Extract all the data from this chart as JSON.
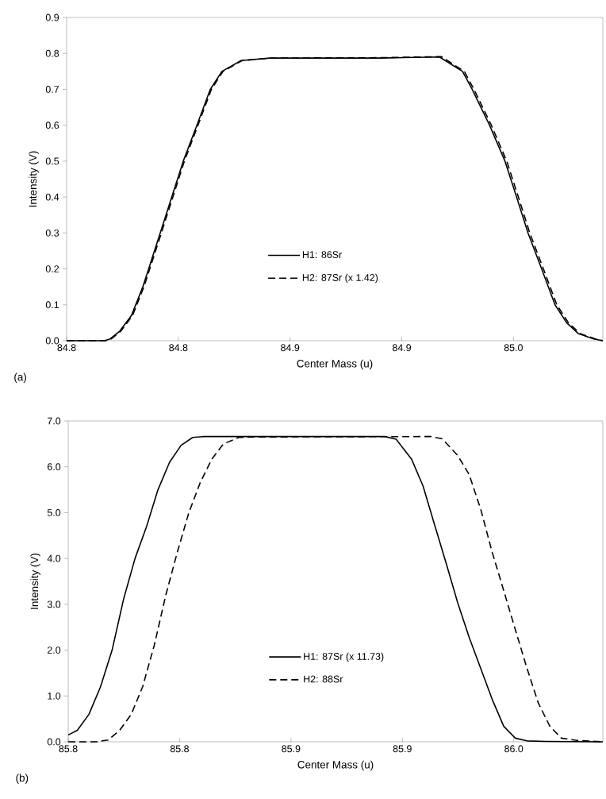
{
  "chart_data": [
    {
      "type": "line",
      "xlabel": "Center Mass (u)",
      "ylabel": "Intensity (V)",
      "annotations": [
        "(a)"
      ],
      "legend": "bottom",
      "xlim": [
        84.76,
        85.0
      ],
      "ylim": [
        0,
        0.9
      ],
      "xticks": [
        {
          "value": 84.76,
          "label": "84.8"
        },
        {
          "value": 84.81,
          "label": "84.8"
        },
        {
          "value": 84.86,
          "label": "84.9"
        },
        {
          "value": 84.91,
          "label": "84.9"
        },
        {
          "value": 84.96,
          "label": "85.0"
        }
      ],
      "yticks": [
        {
          "value": 0,
          "label": "0.0"
        },
        {
          "value": 0.1,
          "label": "0.1"
        },
        {
          "value": 0.2,
          "label": "0.2"
        },
        {
          "value": 0.3,
          "label": "0.3"
        },
        {
          "value": 0.4,
          "label": "0.4"
        },
        {
          "value": 0.5,
          "label": "0.5"
        },
        {
          "value": 0.6,
          "label": "0.6"
        },
        {
          "value": 0.7,
          "label": "0.7"
        },
        {
          "value": 0.8,
          "label": "0.8"
        },
        {
          "value": 0.9,
          "label": "0.9"
        }
      ],
      "series": [
        {
          "name": "H1: 86Sr",
          "color": "#000000",
          "line_style": "solid",
          "x": [
            84.76,
            84.7769,
            84.7795,
            84.7838,
            84.789,
            84.7941,
            84.8019,
            84.8122,
            84.8183,
            84.8243,
            84.8295,
            84.8381,
            84.851,
            84.9,
            84.9269,
            84.9372,
            84.9415,
            84.9493,
            84.9562,
            84.9614,
            84.9665,
            84.9726,
            84.9786,
            84.9838,
            84.989,
            84.9959,
            85.0
          ],
          "values": [
            0,
            0,
            0.005,
            0.027,
            0.07,
            0.15,
            0.3,
            0.5,
            0.6,
            0.7,
            0.75,
            0.78,
            0.787,
            0.787,
            0.79,
            0.75,
            0.7,
            0.6,
            0.5,
            0.4,
            0.3,
            0.2,
            0.1,
            0.05,
            0.02,
            0.005,
            0
          ]
        },
        {
          "name": "H2: 87Sr (x 1.42)",
          "color": "#000000",
          "line_style": "dashed",
          "x": [
            84.76,
            84.7774,
            84.78,
            84.7843,
            84.7895,
            84.7946,
            84.8024,
            84.8127,
            84.8188,
            84.8248,
            84.83,
            84.8386,
            84.8515,
            84.9,
            84.9277,
            84.938,
            84.9423,
            84.9501,
            84.957,
            84.9622,
            84.9673,
            84.9734,
            84.9794,
            84.9846,
            84.9898,
            84.9967,
            85.0
          ],
          "values": [
            0,
            0,
            0.005,
            0.027,
            0.07,
            0.15,
            0.3,
            0.5,
            0.6,
            0.7,
            0.75,
            0.78,
            0.787,
            0.788,
            0.791,
            0.75,
            0.7,
            0.6,
            0.5,
            0.4,
            0.3,
            0.2,
            0.1,
            0.05,
            0.02,
            0.005,
            0
          ]
        }
      ]
    },
    {
      "type": "line",
      "xlabel": "Center Mass (u)",
      "ylabel": "Intensity (V)",
      "annotations": [
        "(b)"
      ],
      "legend": "bottom",
      "xlim": [
        85.79,
        86.03
      ],
      "ylim": [
        0,
        7
      ],
      "xticks": [
        {
          "value": 85.79,
          "label": "85.8"
        },
        {
          "value": 85.84,
          "label": "85.8"
        },
        {
          "value": 85.89,
          "label": "85.9"
        },
        {
          "value": 85.94,
          "label": "85.9"
        },
        {
          "value": 85.99,
          "label": "86.0"
        }
      ],
      "yticks": [
        {
          "value": 0,
          "label": "0.0"
        },
        {
          "value": 1,
          "label": "1.0"
        },
        {
          "value": 2,
          "label": "2.0"
        },
        {
          "value": 3,
          "label": "3.0"
        },
        {
          "value": 4,
          "label": "4.0"
        },
        {
          "value": 5,
          "label": "5.0"
        },
        {
          "value": 6,
          "label": "6.0"
        },
        {
          "value": 7,
          "label": "7.0"
        }
      ],
      "series": [
        {
          "name": "H1: 87Sr (x 11.73)",
          "color": "#000000",
          "line_style": "solid",
          "x": [
            85.79,
            85.7941,
            85.7993,
            85.8045,
            85.8097,
            85.8148,
            85.82,
            85.8252,
            85.8303,
            85.8355,
            85.8407,
            85.8459,
            85.851,
            85.9321,
            85.9372,
            85.9441,
            85.9493,
            85.9545,
            85.9597,
            85.9648,
            85.97,
            85.9752,
            85.9803,
            85.9855,
            85.9907,
            85.9959,
            86.0045,
            86.03
          ],
          "values": [
            0.15,
            0.25,
            0.6,
            1.2,
            2.0,
            3.1,
            4.0,
            4.7,
            5.5,
            6.1,
            6.47,
            6.64,
            6.66,
            6.66,
            6.6,
            6.17,
            5.58,
            4.73,
            3.89,
            3.04,
            2.28,
            1.6,
            0.93,
            0.34,
            0.08,
            0.02,
            0.01,
            0
          ]
        },
        {
          "name": "H2: 88Sr",
          "color": "#000000",
          "line_style": "dashed",
          "x": [
            85.79,
            85.8028,
            85.8079,
            85.8131,
            85.8183,
            85.8234,
            85.8286,
            85.8338,
            85.839,
            85.8441,
            85.8493,
            85.8545,
            85.8597,
            85.8666,
            85.8734,
            85.9528,
            85.9579,
            85.9648,
            85.97,
            85.9752,
            85.9803,
            85.9855,
            85.9907,
            85.9959,
            86.001,
            86.0062,
            86.0114,
            86.0183,
            86.03
          ],
          "values": [
            0,
            0,
            0.04,
            0.25,
            0.6,
            1.2,
            2.1,
            3.2,
            4.14,
            4.99,
            5.66,
            6.17,
            6.5,
            6.64,
            6.65,
            6.66,
            6.61,
            6.25,
            5.83,
            5.07,
            4.14,
            3.3,
            2.45,
            1.61,
            0.85,
            0.34,
            0.08,
            0.03,
            0
          ]
        }
      ]
    }
  ]
}
